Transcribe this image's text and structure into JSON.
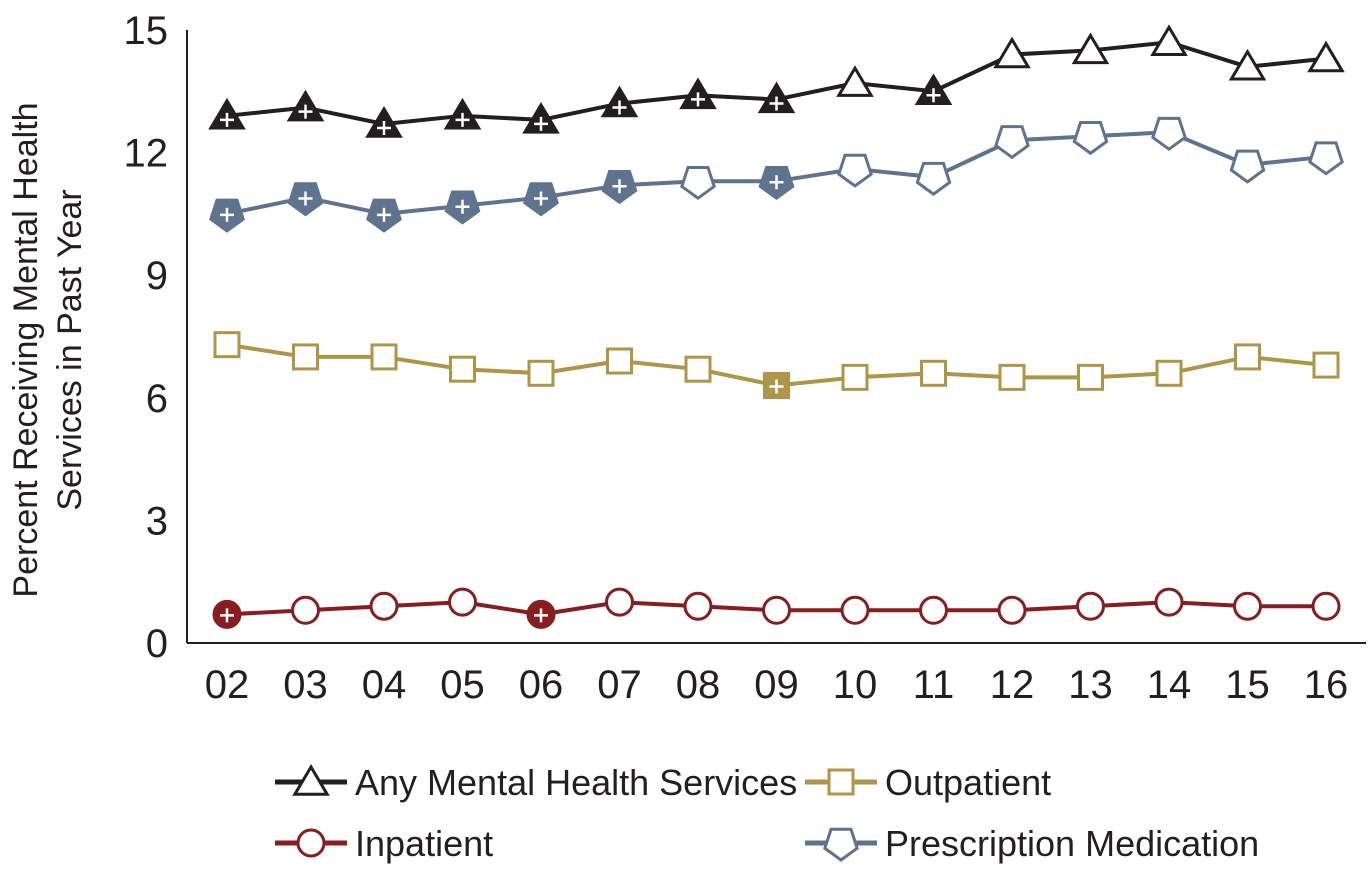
{
  "chart_data": {
    "type": "line",
    "title": "",
    "xlabel": "",
    "ylabel_lines": [
      "Percent Receiving Mental Health",
      "Services in Past Year"
    ],
    "categories": [
      "02",
      "03",
      "04",
      "05",
      "06",
      "07",
      "08",
      "09",
      "10",
      "11",
      "12",
      "13",
      "14",
      "15",
      "16"
    ],
    "ylim": [
      0,
      15
    ],
    "yticks": [
      "0",
      "3",
      "6",
      "9",
      "12",
      "15"
    ],
    "grid": false,
    "legend_position": "bottom",
    "series": [
      {
        "name": "Any Mental Health Services",
        "color": "#231f20",
        "marker": "triangle",
        "values": [
          12.9,
          13.1,
          12.7,
          12.9,
          12.8,
          13.2,
          13.4,
          13.3,
          13.7,
          13.5,
          14.4,
          14.5,
          14.7,
          14.1,
          14.3
        ],
        "significant": [
          true,
          true,
          true,
          true,
          true,
          true,
          true,
          true,
          false,
          true,
          false,
          false,
          false,
          false,
          false
        ]
      },
      {
        "name": "Prescription Medication",
        "color": "#5e748e",
        "marker": "pentagon",
        "values": [
          10.5,
          10.9,
          10.5,
          10.7,
          10.9,
          11.2,
          11.3,
          11.3,
          11.6,
          11.4,
          12.3,
          12.4,
          12.5,
          11.7,
          11.9
        ],
        "significant": [
          true,
          true,
          true,
          true,
          true,
          true,
          false,
          true,
          false,
          false,
          false,
          false,
          false,
          false,
          false
        ]
      },
      {
        "name": "Outpatient",
        "color": "#ae9548",
        "marker": "square",
        "values": [
          7.3,
          7.0,
          7.0,
          6.7,
          6.6,
          6.9,
          6.7,
          6.3,
          6.5,
          6.6,
          6.5,
          6.5,
          6.6,
          7.0,
          6.8
        ],
        "significant": [
          false,
          false,
          false,
          false,
          false,
          false,
          false,
          true,
          false,
          false,
          false,
          false,
          false,
          false,
          false
        ]
      },
      {
        "name": "Inpatient",
        "color": "#871d1f",
        "marker": "circle",
        "values": [
          0.7,
          0.8,
          0.9,
          1.0,
          0.7,
          1.0,
          0.9,
          0.8,
          0.8,
          0.8,
          0.8,
          0.9,
          1.0,
          0.9,
          0.9
        ],
        "significant": [
          true,
          false,
          false,
          false,
          true,
          false,
          false,
          false,
          false,
          false,
          false,
          false,
          false,
          false,
          false
        ]
      }
    ],
    "legend": [
      {
        "label": "Any Mental Health Services",
        "series": 0
      },
      {
        "label": "Outpatient",
        "series": 2
      },
      {
        "label": "Inpatient",
        "series": 3
      },
      {
        "label": "Prescription Medication",
        "series": 1
      }
    ]
  }
}
